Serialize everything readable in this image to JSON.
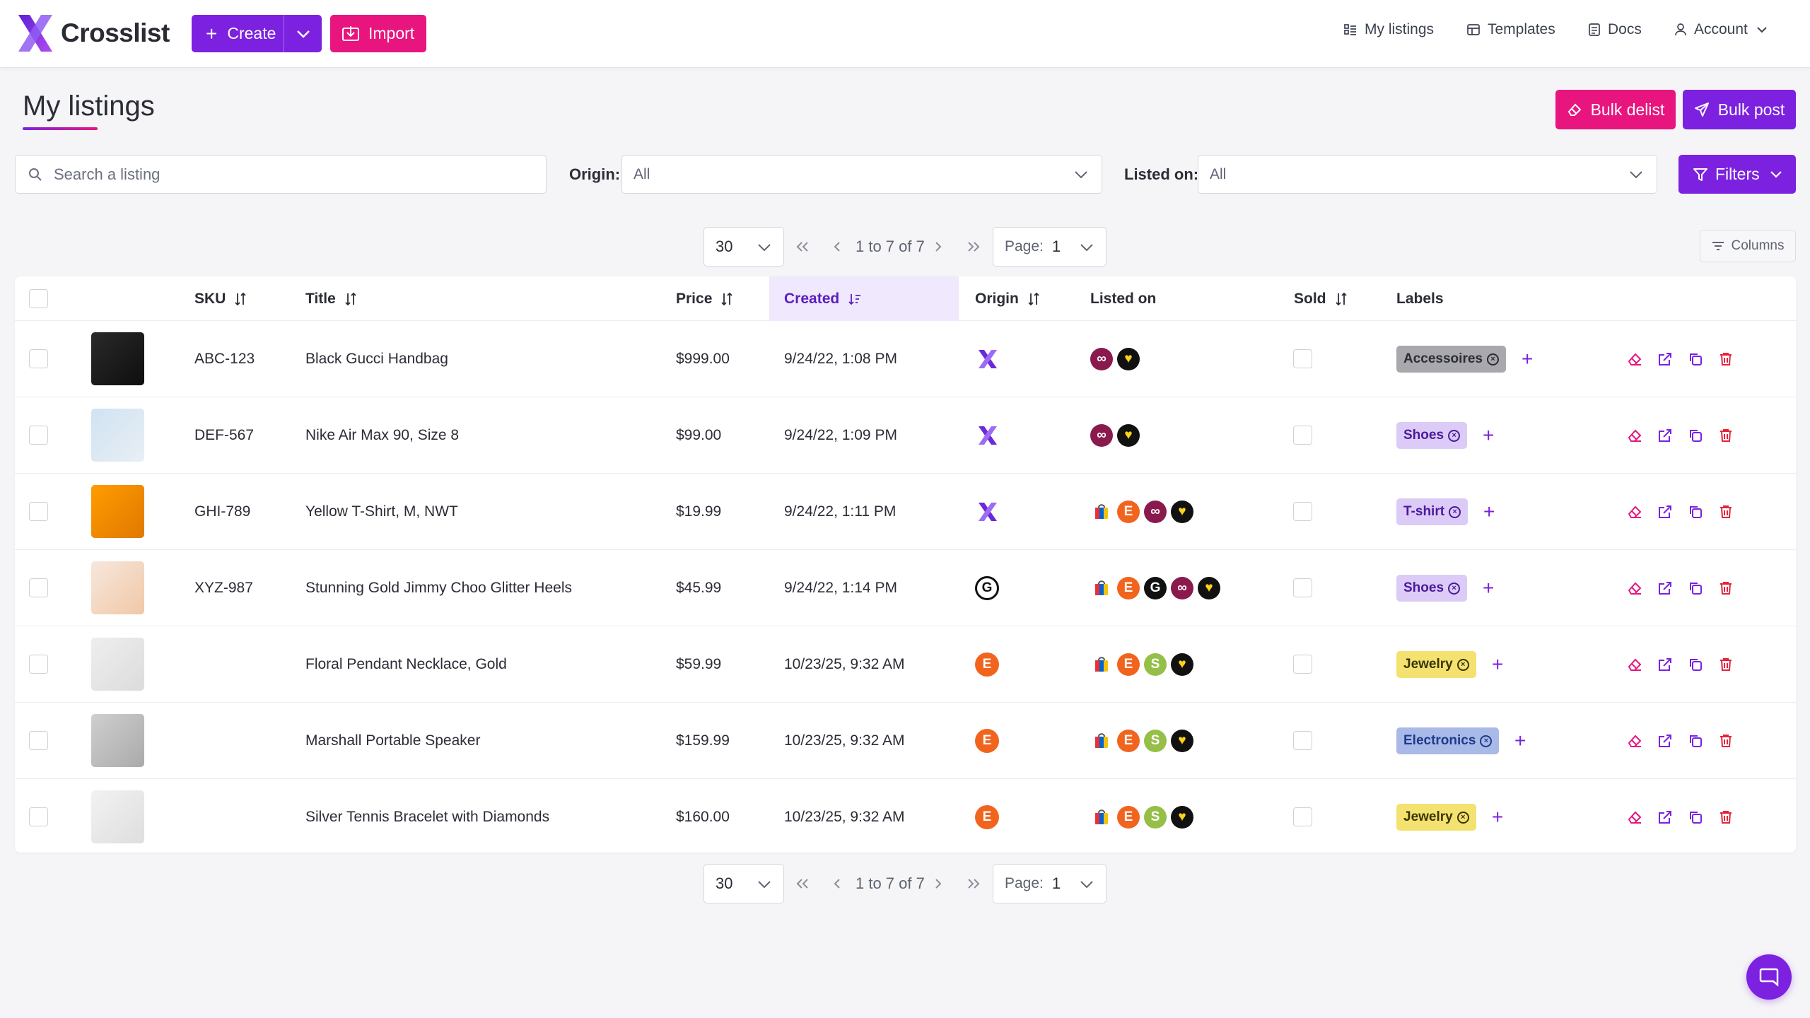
{
  "app": {
    "name": "Crosslist"
  },
  "header": {
    "create_label": "Create",
    "import_label": "Import",
    "nav": [
      {
        "label": "My listings",
        "icon": "list-icon"
      },
      {
        "label": "Templates",
        "icon": "template-icon"
      },
      {
        "label": "Docs",
        "icon": "doc-icon"
      },
      {
        "label": "Account",
        "icon": "user-icon"
      }
    ]
  },
  "page": {
    "title": "My listings",
    "bulk_delist": "Bulk delist",
    "bulk_post": "Bulk post"
  },
  "filters": {
    "search_placeholder": "Search a listing",
    "origin_label": "Origin:",
    "origin_value": "All",
    "listed_on_label": "Listed on:",
    "listed_on_value": "All",
    "filters_label": "Filters"
  },
  "pagination": {
    "page_size": "30",
    "range": "1 to 7 of 7",
    "page_label": "Page:",
    "page_value": "1"
  },
  "columns_button": "Columns",
  "table": {
    "headers": {
      "sku": "SKU",
      "title": "Title",
      "price": "Price",
      "created": "Created",
      "origin": "Origin",
      "listed_on": "Listed on",
      "sold": "Sold",
      "labels": "Labels"
    },
    "rows": [
      {
        "sku": "ABC-123",
        "title": "Black Gucci Handbag",
        "price": "$999.00",
        "created": "9/24/22, 1:08 PM",
        "origin": "crosslist",
        "listed_on": [
          "depop",
          "poshmark"
        ],
        "label": "Accessoires",
        "label_style": "gray",
        "thumb": "handbag"
      },
      {
        "sku": "DEF-567",
        "title": "Nike Air Max 90, Size 8",
        "price": "$99.00",
        "created": "9/24/22, 1:09 PM",
        "origin": "crosslist",
        "listed_on": [
          "depop",
          "poshmark"
        ],
        "label": "Shoes",
        "label_style": "purple",
        "thumb": "sneaker"
      },
      {
        "sku": "GHI-789",
        "title": "Yellow T-Shirt, M, NWT",
        "price": "$19.99",
        "created": "9/24/22, 1:11 PM",
        "origin": "crosslist",
        "listed_on": [
          "ebay",
          "etsy",
          "depop",
          "poshmark"
        ],
        "label": "T-shirt",
        "label_style": "purple",
        "thumb": "tshirt"
      },
      {
        "sku": "XYZ-987",
        "title": "Stunning Gold Jimmy Choo Glitter Heels",
        "price": "$45.99",
        "created": "9/24/22, 1:14 PM",
        "origin": "grailed",
        "listed_on": [
          "ebay",
          "etsy",
          "grailed",
          "depop",
          "poshmark"
        ],
        "label": "Shoes",
        "label_style": "purple",
        "thumb": "heels"
      },
      {
        "sku": "",
        "title": "Floral Pendant Necklace, Gold",
        "price": "$59.99",
        "created": "10/23/25, 9:32 AM",
        "origin": "etsy",
        "listed_on": [
          "ebay",
          "etsy",
          "shopify",
          "poshmark"
        ],
        "label": "Jewelry",
        "label_style": "yellow",
        "thumb": "necklace"
      },
      {
        "sku": "",
        "title": "Marshall Portable Speaker",
        "price": "$159.99",
        "created": "10/23/25, 9:32 AM",
        "origin": "etsy",
        "listed_on": [
          "ebay",
          "etsy",
          "shopify",
          "poshmark"
        ],
        "label": "Electronics",
        "label_style": "blue",
        "thumb": "speaker"
      },
      {
        "sku": "",
        "title": "Silver Tennis Bracelet with Diamonds",
        "price": "$160.00",
        "created": "10/23/25, 9:32 AM",
        "origin": "etsy",
        "listed_on": [
          "ebay",
          "etsy",
          "shopify",
          "poshmark"
        ],
        "label": "Jewelry",
        "label_style": "yellow",
        "thumb": "bracelet"
      }
    ]
  },
  "colors": {
    "primary": "#7c21e0",
    "accent": "#e8157f",
    "danger": "#e5243b",
    "label_gray": "#a8a8ad",
    "label_purple": "#dccbf7",
    "label_yellow": "#f3e270",
    "label_blue": "#a9b9e8"
  }
}
